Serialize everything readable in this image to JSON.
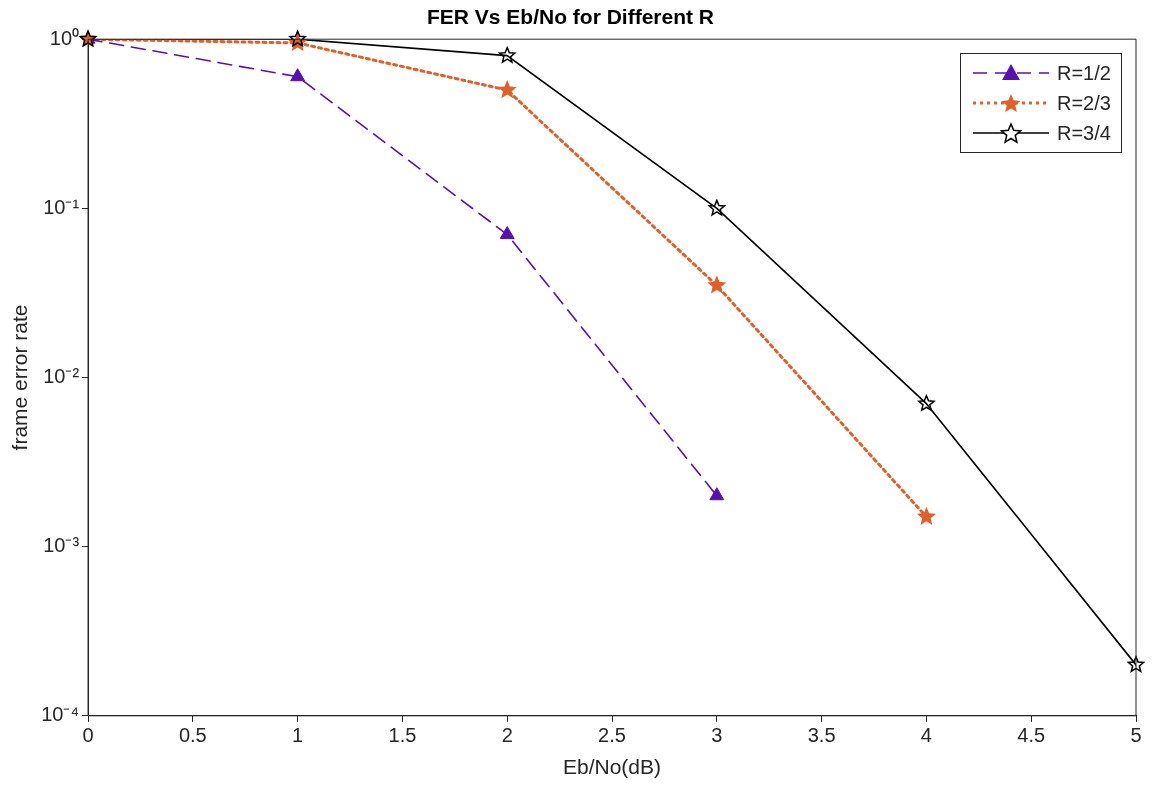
{
  "chart_data": {
    "type": "line",
    "title": "FER Vs Eb/No for Different R",
    "xlabel": "Eb/No(dB)",
    "ylabel": "frame error rate",
    "log": "y",
    "grid": false,
    "legend": "top right",
    "xlim": [
      0,
      5
    ],
    "xticks": [
      0,
      0.5,
      1,
      1.5,
      2,
      2.5,
      3,
      3.5,
      4,
      4.5,
      5
    ],
    "ylim": [
      0.0001,
      1
    ],
    "yticks": [
      {
        "value": 0.0001,
        "label": "10⁻⁴"
      },
      {
        "value": 0.001,
        "label": "10⁻³"
      },
      {
        "value": 0.01,
        "label": "10⁻²"
      },
      {
        "value": 0.1,
        "label": "10⁻¹"
      },
      {
        "value": 1,
        "label": "10⁰"
      }
    ],
    "series": [
      {
        "name": "R=1/2",
        "color": "#5a10b0",
        "marker": "triangle",
        "line_style": "dashed",
        "x": [
          0,
          1,
          2,
          3
        ],
        "values": [
          1,
          0.6,
          0.07,
          0.002
        ]
      },
      {
        "name": "R=2/3",
        "color": "#e0602a",
        "marker": "star",
        "line_style": "dotted",
        "x": [
          0,
          1,
          2,
          3,
          4
        ],
        "values": [
          1,
          0.95,
          0.5,
          0.035,
          0.0015
        ]
      },
      {
        "name": "R=3/4",
        "color": "#000000",
        "marker": "star",
        "line_style": "solid",
        "x": [
          0,
          1,
          2,
          3,
          4,
          5
        ],
        "values": [
          1,
          1,
          0.8,
          0.1,
          0.007,
          0.0002
        ]
      }
    ]
  }
}
